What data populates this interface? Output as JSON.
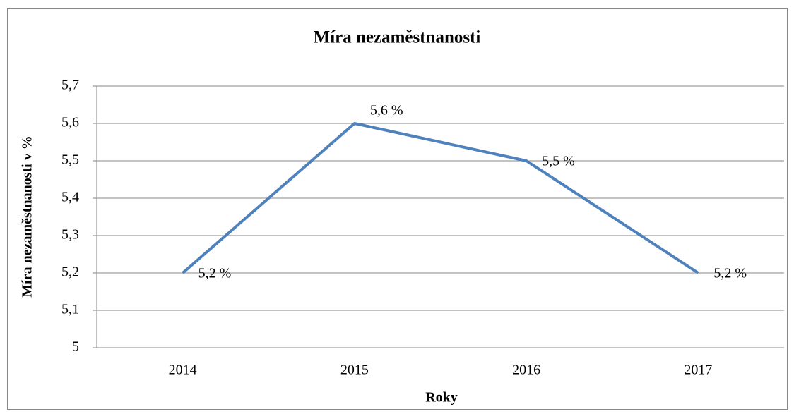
{
  "chart_data": {
    "type": "line",
    "title": "Míra nezaměstnanosti",
    "x_label": "Roky",
    "y_label": "Míra nezaměstnanosti v %",
    "categories": [
      "2014",
      "2015",
      "2016",
      "2017"
    ],
    "series": [
      {
        "name": "Míra nezaměstnanosti",
        "color": "#4f81bd",
        "values": [
          5.2,
          5.6,
          5.5,
          5.2
        ],
        "value_labels": [
          "5,2 %",
          "5,6 %",
          "5,5 %",
          "5,2 %"
        ]
      }
    ],
    "ylim": [
      5,
      5.7
    ],
    "yticks": [
      5,
      {
        "value": 5.1,
        "label": "5,1"
      },
      {
        "value": 5.2,
        "label": "5,2"
      },
      {
        "value": 5.3,
        "label": "5,3"
      },
      {
        "value": 5.4,
        "label": "5,4"
      },
      {
        "value": 5.5,
        "label": "5,5"
      },
      {
        "value": 5.6,
        "label": "5,6"
      },
      {
        "value": 5.7,
        "label": "5,7"
      }
    ],
    "grid": true
  }
}
